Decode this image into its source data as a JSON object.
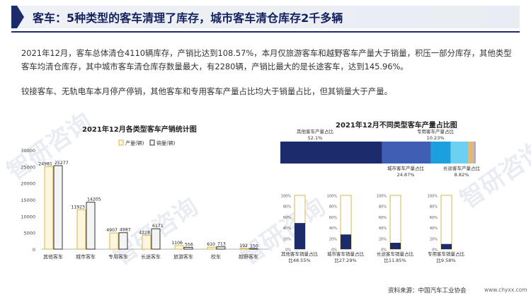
{
  "header": {
    "title": "客车：5种类型的客车清理了库存，城市客车清仓库存2千多辆"
  },
  "paragraphs": [
    "2021年12月，客车总体清仓4110辆库存，产销比达到108.57%，本月仅旅游客车和越野客车产量大于销量，积压一部分库存，其他类型客车均清仓库存，其中城市客车清仓库存数量最大，有2280辆，产销比最大的是长途客车，达到145.96%。",
    "铰接客车、无轨电车本月停产停销，其他客车和专用客车产量占比均大于销量占比，但其销量大于产量。"
  ],
  "watermark": {
    "text": "智研咨询"
  },
  "bar_chart_title": "2021年12月各类型客车产销统计图",
  "share_chart_title": "2021年12月不同类型客车产量占比图",
  "colors": {
    "header_accent": "#1b2b6b",
    "production_fill": "#fdf6df",
    "production_stroke": "#d9b44a",
    "sales_fill": "#f4f4f4",
    "sales_stroke": "#333333",
    "stacked": [
      "#1b2b6b",
      "#3e5fb4",
      "#1aa0dc",
      "#6cd0f2",
      "#f0b36a",
      "#b3b3b3"
    ],
    "mini_fill": "#1b2b6b",
    "mini_border": "#d9b44a"
  },
  "chart_data": [
    {
      "type": "bar",
      "title": "2021年12月各类型客车产销统计图",
      "categories": [
        "其他客车",
        "城市客车",
        "专用客车",
        "长途客车",
        "旅游客车",
        "校车",
        "越野客车"
      ],
      "series": [
        {
          "name": "产量(辆)",
          "values": [
            24981,
            11923,
            4907,
            4228,
            1106,
            610,
            192
          ]
        },
        {
          "name": "销量(辆)",
          "values": [
            25277,
            14205,
            4987,
            6171,
            556,
            713,
            150
          ]
        }
      ],
      "value_labels": {
        "产量(辆)": [
          "24981",
          "11923",
          "4907",
          "4228",
          "1106",
          "610",
          "192"
        ],
        "销量(辆)": [
          "25277",
          "14205",
          "4987",
          "6171",
          "556",
          "713",
          "150"
        ]
      },
      "yticks": [
        "0",
        "5000",
        "10000",
        "15000",
        "20000",
        "25000",
        "30000"
      ],
      "ylim": [
        0,
        30000
      ],
      "legend_position": "top"
    },
    {
      "type": "bar",
      "title": "2021年12月不同类型客车产量占比图",
      "stacked": true,
      "segments": [
        {
          "name": "其他客车",
          "value": 52.1
        },
        {
          "name": "城市客车",
          "value": 24.87
        },
        {
          "name": "专用客车",
          "value": 10.23
        },
        {
          "name": "长途客车",
          "value": 8.82
        },
        {
          "name": "other",
          "value": 2.6
        },
        {
          "name": "other",
          "value": 1.38
        }
      ],
      "annotations": [
        {
          "label": "其他客车产量占比",
          "value_text": "52.1%"
        },
        {
          "label": "专用客车产量占比",
          "value_text": "10.23%"
        },
        {
          "label": "城市客车产量占比",
          "value_text": "24.87%"
        },
        {
          "label": "长途客车产量占比",
          "value_text": "8.82%"
        }
      ]
    },
    {
      "type": "bar",
      "title": "",
      "mini_bars": [
        {
          "name": "其他客车销量占比",
          "value": 48.55,
          "text": "比48.55%"
        },
        {
          "name": "城市客车销量占比",
          "value": 27.29,
          "text": "比27.29%"
        },
        {
          "name": "长途客车销量占比",
          "value": 11.85,
          "text": "比11.85%"
        },
        {
          "name": "专用客车销量占比",
          "value": 9.58,
          "text": "比9.58%"
        }
      ],
      "yticks": [
        "0%",
        "20%",
        "40%",
        "60%",
        "80%",
        "100%"
      ],
      "ylim": [
        0,
        100
      ]
    }
  ],
  "footer": {
    "source": "资料来源：中国汽车工业协会",
    "url": "www.chyxx.com"
  }
}
